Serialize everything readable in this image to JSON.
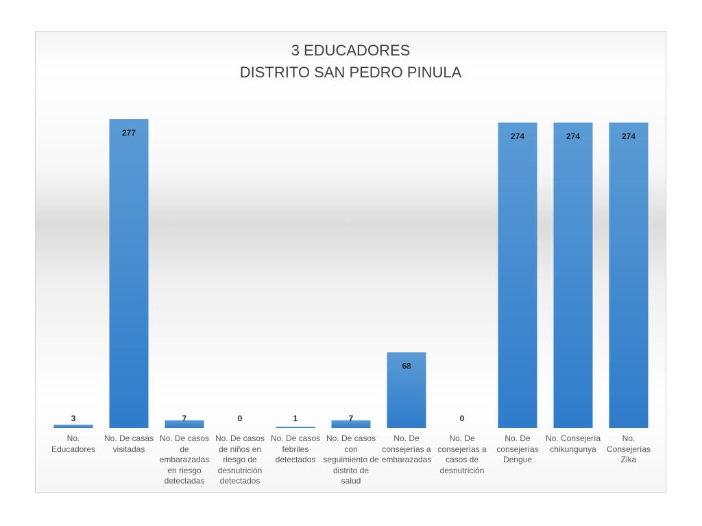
{
  "chart_data": {
    "type": "bar",
    "title_line1": "3 EDUCADORES",
    "title_line2": "DISTRITO SAN PEDRO  PINULA",
    "categories": [
      "No. Educadores",
      "No. De casas visitadas",
      "No. De casos de embarazadas en riesgo detectadas",
      "No. De casos de niños en riesgo de desnutrición detectados",
      "No. De casos febriles detectados",
      "No. De casos con seguimiento de distrito de salud",
      "No. De consejerías a embarazadas",
      "No. De consejerías a casos de desnutrición",
      "No. De consejerías Dengue",
      "No. Consejería chikungunya",
      "No. Consejerías Zika"
    ],
    "values": [
      3,
      277,
      7,
      0,
      1,
      7,
      68,
      0,
      274,
      274,
      274
    ],
    "data_labels": [
      "3",
      "277",
      "7",
      "0",
      "1",
      "7",
      "68",
      "0",
      "274",
      "274",
      "274"
    ],
    "ylim": [
      0,
      277
    ],
    "grid": false,
    "legend": "none",
    "bar_color": "#4a8fd6"
  }
}
